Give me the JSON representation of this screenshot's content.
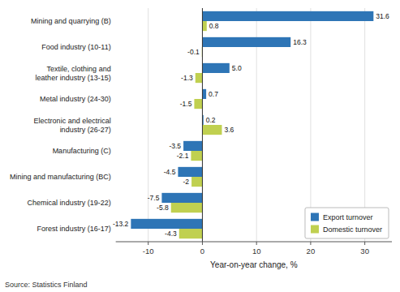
{
  "chart_data": {
    "type": "bar",
    "orientation": "horizontal",
    "categories": [
      "Mining and quarrying (B)",
      "Food industry (10-11)",
      "Textile, clothing and\nleather industry (13-15)",
      "Metal industry (24-30)",
      "Electronic and electrical\nindustry (26-27)",
      "Manufacturing (C)",
      "Mining and manufacturing (BC)",
      "Chemical industry (19-22)",
      "Forest industry (16-17)"
    ],
    "series": [
      {
        "name": "Export turnover",
        "color": "#2E75B6",
        "values": [
          31.6,
          16.3,
          5.0,
          0.7,
          0.2,
          -3.5,
          -4.5,
          -7.5,
          -13.2
        ],
        "value_labels": [
          "31.6",
          "16.3",
          "5.0",
          "0.7",
          "0.2",
          "-3.5",
          "-4.5",
          "-7.5",
          "-13.2"
        ]
      },
      {
        "name": "Domestic turnover",
        "color": "#C0D050",
        "values": [
          0.8,
          -0.1,
          -1.3,
          -1.5,
          3.6,
          -2.1,
          -2.0,
          -5.8,
          -4.3
        ]
      }
    ],
    "xlabel": "Year-on-year change, %",
    "source": "Source: Statistics Finland",
    "xlim": [
      -16,
      35
    ],
    "xticks": [
      -10,
      0,
      10,
      20,
      30
    ],
    "grid": true,
    "legend": "lower right",
    "data_labels": true
  }
}
